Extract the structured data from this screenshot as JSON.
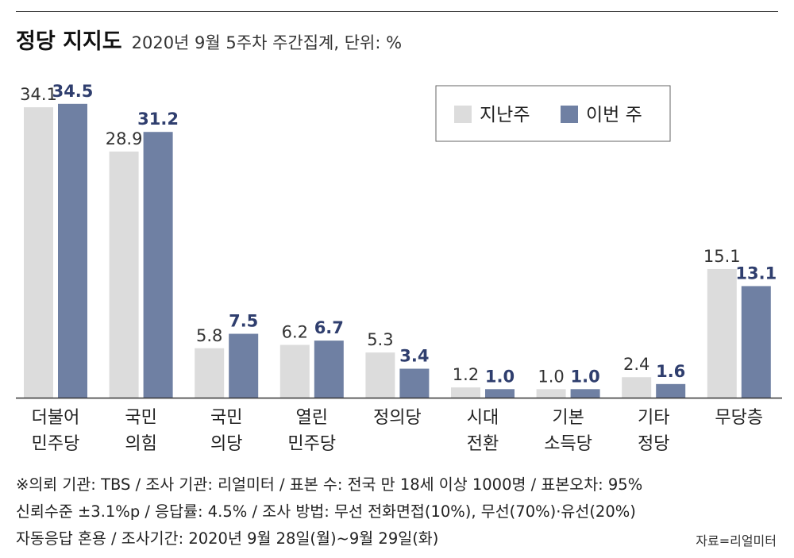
{
  "header": {
    "title": "정당 지지도",
    "subtitle": "2020년 9월 5주차 주간집계, 단위: %"
  },
  "colors": {
    "last_week": "#dcdcdc",
    "this_week": "#6f80a3",
    "this_week_label": "#2f3e6e",
    "last_week_label": "#333333",
    "axis": "#333333"
  },
  "chart_data": {
    "type": "bar",
    "categories": [
      [
        "더불어",
        "민주당"
      ],
      [
        "국민",
        "의힘"
      ],
      [
        "국민",
        "의당"
      ],
      [
        "열린",
        "민주당"
      ],
      [
        "정의당"
      ],
      [
        "시대",
        "전환"
      ],
      [
        "기본",
        "소득당"
      ],
      [
        "기타",
        "정당"
      ],
      [
        "무당층"
      ]
    ],
    "series": [
      {
        "name": "지난주",
        "values": [
          34.1,
          28.9,
          5.8,
          6.2,
          5.3,
          1.2,
          1.0,
          2.4,
          15.1
        ],
        "labels": [
          "34.1",
          "28.9",
          "5.8",
          "6.2",
          "5.3",
          "1.2",
          "1.0",
          "2.4",
          "15.1"
        ]
      },
      {
        "name": "이번 주",
        "values": [
          34.5,
          31.2,
          7.5,
          6.7,
          3.4,
          1.0,
          1.0,
          1.6,
          13.1
        ],
        "labels": [
          "34.5",
          "31.2",
          "7.5",
          "6.7",
          "3.4",
          "1.0",
          "1.0",
          "1.6",
          "13.1"
        ]
      }
    ],
    "ylim": [
      0,
      35
    ],
    "grid": false,
    "legend_position": "top-right"
  },
  "notes": [
    "※의뢰 기관: TBS / 조사 기관: 리얼미터 / 표본 수: 전국 만 18세 이상 1000명 / 표본오차: 95%",
    "신뢰수준 ±3.1%p / 응답률: 4.5% / 조사 방법: 무선 전화면접(10%), 무선(70%)·유선(20%)",
    "자동응답 혼용 / 조사기간: 2020년 9월 28일(월)~9월 29일(화)"
  ],
  "source": "자료=리얼미터"
}
